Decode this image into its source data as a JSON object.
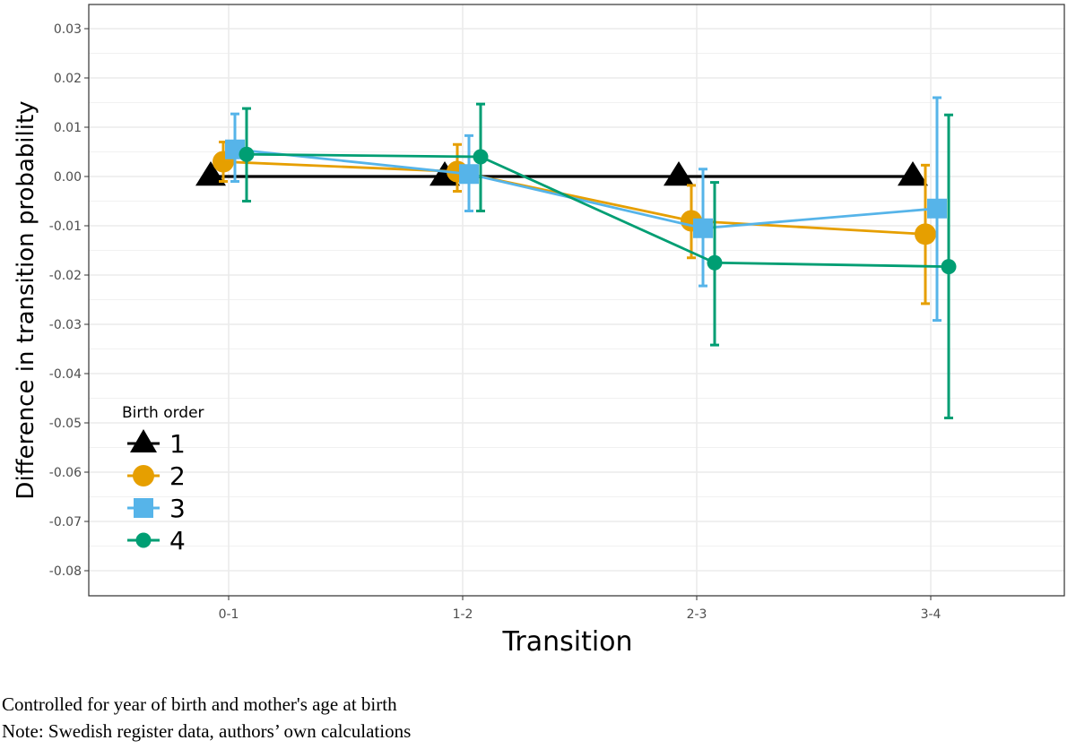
{
  "chart_data": {
    "type": "line",
    "xlabel": "Transition",
    "ylabel": "Difference in transition probability",
    "categories": [
      "0-1",
      "1-2",
      "2-3",
      "3-4"
    ],
    "ylim": [
      -0.09,
      0.035
    ],
    "yticks": [
      0.03,
      0.02,
      0.01,
      0.0,
      -0.01,
      -0.02,
      -0.03,
      -0.04,
      -0.05,
      -0.06,
      -0.07,
      -0.08
    ],
    "ytick_labels": [
      "0.03",
      "0.02",
      "0.01",
      "0.00",
      "-0.01",
      "-0.02",
      "-0.03",
      "-0.04",
      "-0.05",
      "-0.06",
      "-0.07",
      "-0.08"
    ],
    "grid": true,
    "legend": {
      "title": "Birth order",
      "position": "bottom-left"
    },
    "series": [
      {
        "name": "1",
        "color": "#000000",
        "marker": "triangle",
        "values": [
          0.0,
          0.0,
          0.0,
          0.0
        ],
        "lower": [
          null,
          null,
          null,
          null
        ],
        "upper": [
          null,
          null,
          null,
          null
        ]
      },
      {
        "name": "2",
        "color": "#E69F00",
        "marker": "circle",
        "values": [
          0.003,
          0.001,
          -0.009,
          -0.0117
        ],
        "lower": [
          -0.001,
          -0.003,
          -0.0165,
          -0.0258
        ],
        "upper": [
          0.007,
          0.0065,
          -0.0018,
          0.0023
        ]
      },
      {
        "name": "3",
        "color": "#56B4E9",
        "marker": "square",
        "values": [
          0.0055,
          0.0005,
          -0.0105,
          -0.0065
        ],
        "lower": [
          -0.001,
          -0.007,
          -0.0222,
          -0.0292
        ],
        "upper": [
          0.0127,
          0.0083,
          0.0015,
          0.016
        ]
      },
      {
        "name": "4",
        "color": "#009E73",
        "marker": "dot",
        "values": [
          0.0045,
          0.004,
          -0.0175,
          -0.0183
        ],
        "lower": [
          -0.005,
          -0.007,
          -0.0342,
          -0.049
        ],
        "upper": [
          0.0138,
          0.0147,
          -0.0012,
          0.0125
        ]
      }
    ]
  },
  "notes": {
    "line1": "Controlled for year of birth and mother's age at birth",
    "line2": "Note: Swedish register data, authors’ own calculations"
  }
}
